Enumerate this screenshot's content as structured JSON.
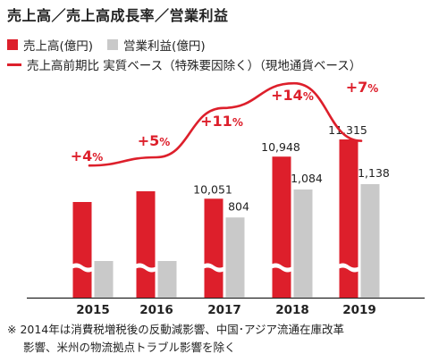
{
  "title": "売上高／売上高成長率／営業利益",
  "legend": {
    "sales": "売上高(億円)",
    "operating_profit": "営業利益(億円)",
    "growth": "売上高前期比 実質ベース（特殊要因除く）（現地通貨ベース）"
  },
  "colors": {
    "sales": "#dd1f2b",
    "operating_profit": "#c9c9c9",
    "growth": "#dd1f2b",
    "text": "#222222"
  },
  "chart_data": {
    "type": "bar",
    "categories": [
      "2015",
      "2016",
      "2017",
      "2018",
      "2019"
    ],
    "series": [
      {
        "name": "売上高(億円)",
        "values": [
          null,
          null,
          10051,
          10948,
          11315
        ],
        "value_labels": [
          "",
          "",
          "10,051",
          "10,948",
          "11,315"
        ]
      },
      {
        "name": "営業利益(億円)",
        "values": [
          null,
          null,
          804,
          1084,
          1138
        ],
        "value_labels": [
          "",
          "",
          "804",
          "1,084",
          "1,138"
        ]
      }
    ],
    "growth_line": {
      "name": "売上高前期比 実質ベース（特殊要因除く）（現地通貨ベース）",
      "values": [
        4,
        5,
        11,
        14,
        7
      ],
      "labels": [
        "+4%",
        "+5%",
        "+11%",
        "+14%",
        "+7%"
      ]
    },
    "axis_break": true,
    "ylabel": "",
    "xlabel": ""
  },
  "footnote": {
    "line1": "※ 2014年は消費税増税後の反動減影響、中国･アジア流通在庫改革",
    "line2": "影響、米州の物流拠点トラブル影響を除く"
  }
}
